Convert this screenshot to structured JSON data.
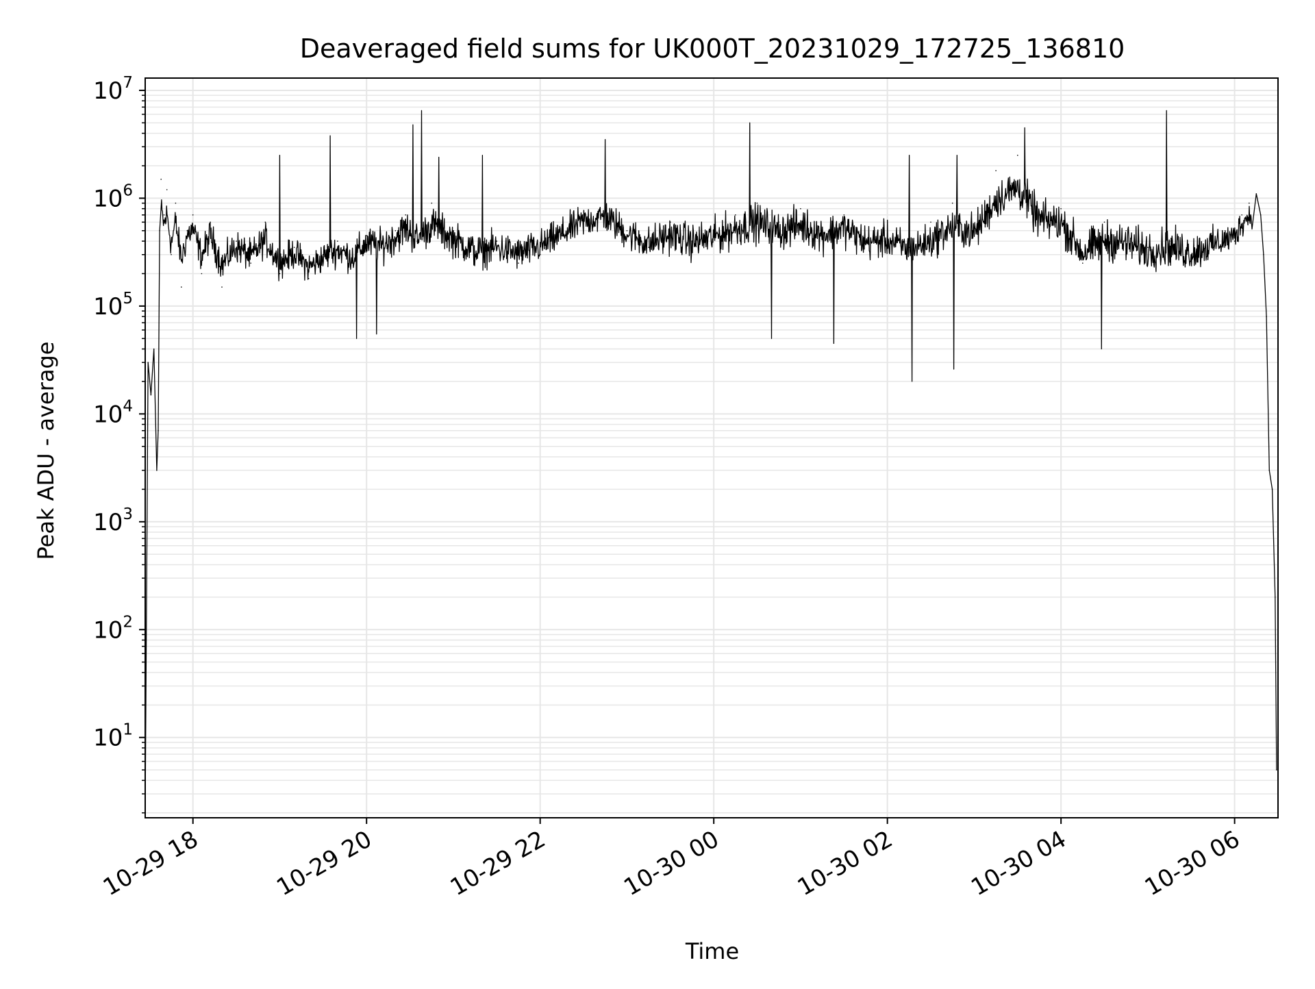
{
  "chart_data": {
    "type": "line",
    "title": "Deaveraged field sums for UK000T_20231029_172725_136810",
    "xlabel": "Time",
    "ylabel": "Peak ADU - average",
    "y_scale": "log",
    "ylim": [
      1.8,
      13000000
    ],
    "xlim": [
      "2023-10-29 17:27",
      "2023-10-30 06:30"
    ],
    "grid": true,
    "line_color": "#000000",
    "grid_color": "#e6e6e6",
    "x_tick_labels": [
      "10-29 18",
      "10-29 20",
      "10-29 22",
      "10-30 00",
      "10-30 02",
      "10-30 04",
      "10-30 06"
    ],
    "x_tick_values": [
      "2023-10-29 18:00",
      "2023-10-29 20:00",
      "2023-10-29 22:00",
      "2023-10-30 00:00",
      "2023-10-30 02:00",
      "2023-10-30 04:00",
      "2023-10-30 06:00"
    ],
    "y_tick_values": [
      10,
      100,
      1000,
      10000,
      100000,
      1000000,
      10000000
    ],
    "y_tick_labels": [
      {
        "base": "10",
        "exp": "1"
      },
      {
        "base": "10",
        "exp": "2"
      },
      {
        "base": "10",
        "exp": "3"
      },
      {
        "base": "10",
        "exp": "4"
      },
      {
        "base": "10",
        "exp": "5"
      },
      {
        "base": "10",
        "exp": "6"
      },
      {
        "base": "10",
        "exp": "7"
      }
    ],
    "series": [
      {
        "x": [
          "2023-10-29 17:27",
          "2023-10-29 17:29",
          "2023-10-29 17:31",
          "2023-10-29 17:33",
          "2023-10-29 17:35",
          "2023-10-29 17:36",
          "2023-10-29 17:37",
          "2023-10-29 17:38",
          "2023-10-29 17:40",
          "2023-10-29 17:42",
          "2023-10-29 17:45",
          "2023-10-29 17:48",
          "2023-10-29 17:52",
          "2023-10-29 17:56",
          "2023-10-29 18:00",
          "2023-10-29 18:06",
          "2023-10-29 18:12",
          "2023-10-29 18:20",
          "2023-10-29 18:30",
          "2023-10-29 18:40",
          "2023-10-29 18:50",
          "2023-10-29 19:00",
          "2023-10-29 19:10",
          "2023-10-29 19:20",
          "2023-10-29 19:30",
          "2023-10-29 19:40",
          "2023-10-29 19:50",
          "2023-10-29 20:00",
          "2023-10-29 20:10",
          "2023-10-29 20:20",
          "2023-10-29 20:27",
          "2023-10-29 20:35",
          "2023-10-29 20:45",
          "2023-10-29 21:00",
          "2023-10-29 21:15",
          "2023-10-29 21:30",
          "2023-10-29 21:45",
          "2023-10-29 22:00",
          "2023-10-29 22:15",
          "2023-10-29 22:30",
          "2023-10-29 22:45",
          "2023-10-29 23:00",
          "2023-10-29 23:15",
          "2023-10-29 23:30",
          "2023-10-29 23:45",
          "2023-10-30 00:00",
          "2023-10-30 00:15",
          "2023-10-30 00:30",
          "2023-10-30 00:45",
          "2023-10-30 01:00",
          "2023-10-30 01:15",
          "2023-10-30 01:30",
          "2023-10-30 01:45",
          "2023-10-30 02:00",
          "2023-10-30 02:15",
          "2023-10-30 02:30",
          "2023-10-30 02:45",
          "2023-10-30 03:00",
          "2023-10-30 03:15",
          "2023-10-30 03:30",
          "2023-10-30 03:45",
          "2023-10-30 04:00",
          "2023-10-30 04:15",
          "2023-10-30 04:30",
          "2023-10-30 04:45",
          "2023-10-30 05:00",
          "2023-10-30 05:15",
          "2023-10-30 05:30",
          "2023-10-30 05:45",
          "2023-10-30 06:00",
          "2023-10-30 06:05",
          "2023-10-30 06:10",
          "2023-10-30 06:15",
          "2023-10-30 06:18",
          "2023-10-30 06:20",
          "2023-10-30 06:22",
          "2023-10-30 06:24",
          "2023-10-30 06:26",
          "2023-10-30 06:28",
          "2023-10-30 06:29"
        ],
        "y": [
          2,
          30000,
          15000,
          40000,
          3000,
          7000,
          500000,
          1500000,
          700000,
          1200000,
          300000,
          900000,
          150000,
          500000,
          700000,
          200000,
          600000,
          150000,
          400000,
          250000,
          600000,
          200000,
          350000,
          180000,
          300000,
          400000,
          250000,
          450000,
          350000,
          500000,
          700000,
          400000,
          900000,
          500000,
          300000,
          400000,
          250000,
          300000,
          450000,
          700000,
          1000000,
          500000,
          350000,
          600000,
          400000,
          500000,
          700000,
          900000,
          600000,
          800000,
          500000,
          700000,
          400000,
          500000,
          350000,
          600000,
          900000,
          500000,
          1800000,
          2500000,
          700000,
          800000,
          250000,
          600000,
          500000,
          350000,
          400000,
          300000,
          350000,
          400000,
          700000,
          900000,
          1100000,
          700000,
          300000,
          80000,
          3000,
          2000,
          200,
          5
        ]
      }
    ],
    "envelope": {
      "note_x": [
        "2023-10-29 17:38",
        "2023-10-29 18:30",
        "2023-10-29 19:30",
        "2023-10-29 20:30",
        "2023-10-29 21:30",
        "2023-10-29 22:30",
        "2023-10-29 23:30",
        "2023-10-30 00:30",
        "2023-10-30 01:30",
        "2023-10-30 02:30",
        "2023-10-30 03:30",
        "2023-10-30 04:30",
        "2023-10-30 05:30",
        "2023-10-30 06:10"
      ],
      "low": [
        150000,
        90000,
        80000,
        100000,
        80000,
        150000,
        90000,
        90000,
        100000,
        70000,
        150000,
        60000,
        70000,
        200000
      ],
      "high": [
        1500000,
        1200000,
        900000,
        1800000,
        1200000,
        2000000,
        1500000,
        2000000,
        1800000,
        1200000,
        3500000,
        1500000,
        1500000,
        1500000
      ],
      "spikes_x": [
        "2023-10-29 19:00",
        "2023-10-29 19:35",
        "2023-10-29 20:32",
        "2023-10-29 20:38",
        "2023-10-29 22:45",
        "2023-10-30 00:25",
        "2023-10-30 02:15",
        "2023-10-30 02:48",
        "2023-10-30 03:35",
        "2023-10-30 05:13",
        "2023-10-29 20:50",
        "2023-10-29 21:20"
      ],
      "spikes_y": [
        2500000,
        3800000,
        4800000,
        6500000,
        3500000,
        5000000,
        2500000,
        2500000,
        4500000,
        6500000,
        2400000,
        2500000
      ],
      "dips_x": [
        "2023-10-29 19:53",
        "2023-10-30 00:40",
        "2023-10-30 02:17",
        "2023-10-30 02:46",
        "2023-10-30 01:23",
        "2023-10-30 04:28",
        "2023-10-29 20:07"
      ],
      "dips_y": [
        50000,
        50000,
        20000,
        26000,
        45000,
        40000,
        55000
      ]
    }
  }
}
